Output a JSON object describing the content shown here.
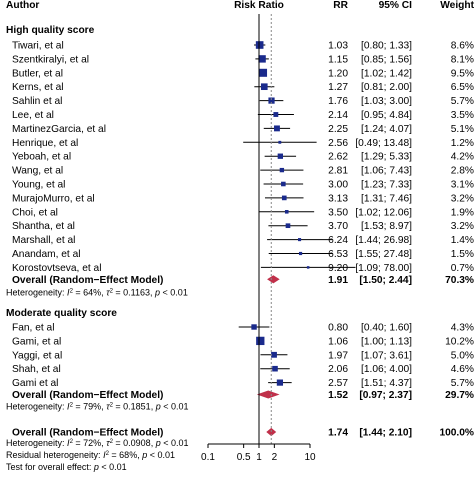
{
  "chart_data": {
    "type": "forest",
    "headers": {
      "author": "Author",
      "risk_ratio": "Risk Ratio",
      "rr": "RR",
      "ci": "95% CI",
      "weight": "Weight"
    },
    "x_scale": "log",
    "xlim": [
      0.1,
      10
    ],
    "x_ticks": [
      0.1,
      0.5,
      1,
      2,
      10
    ],
    "x_tick_labels": [
      "0.1",
      "0.5",
      "1",
      "2",
      "10"
    ],
    "null_line": 1,
    "summary_line": 1.74,
    "groups": [
      {
        "title": "High quality score",
        "studies": [
          {
            "author": "Tiwari, et al",
            "rr": 1.03,
            "lo": 0.8,
            "hi": 1.33,
            "rr_text": "1.03",
            "ci_text": "[0.80;  1.33]",
            "weight": "8.6%"
          },
          {
            "author": "Szentkiralyi, et al",
            "rr": 1.15,
            "lo": 0.85,
            "hi": 1.56,
            "rr_text": "1.15",
            "ci_text": "[0.85;  1.56]",
            "weight": "8.1%"
          },
          {
            "author": "Butler, et al",
            "rr": 1.2,
            "lo": 1.02,
            "hi": 1.42,
            "rr_text": "1.20",
            "ci_text": "[1.02;  1.42]",
            "weight": "9.5%"
          },
          {
            "author": "Kerns, et al",
            "rr": 1.27,
            "lo": 0.81,
            "hi": 2.0,
            "rr_text": "1.27",
            "ci_text": "[0.81;  2.00]",
            "weight": "6.5%"
          },
          {
            "author": "Sahlin et al",
            "rr": 1.76,
            "lo": 1.03,
            "hi": 3.0,
            "rr_text": "1.76",
            "ci_text": "[1.03;  3.00]",
            "weight": "5.7%"
          },
          {
            "author": "Lee, et al",
            "rr": 2.14,
            "lo": 0.95,
            "hi": 4.84,
            "rr_text": "2.14",
            "ci_text": "[0.95;  4.84]",
            "weight": "3.5%"
          },
          {
            "author": "MartinezGarcia, et al",
            "rr": 2.25,
            "lo": 1.24,
            "hi": 4.07,
            "rr_text": "2.25",
            "ci_text": "[1.24;  4.07]",
            "weight": "5.1%"
          },
          {
            "author": "Henrique, et al",
            "rr": 2.56,
            "lo": 0.49,
            "hi": 13.48,
            "rr_text": "2.56",
            "ci_text": "[0.49; 13.48]",
            "weight": "1.2%"
          },
          {
            "author": "Yeboah, et al",
            "rr": 2.62,
            "lo": 1.29,
            "hi": 5.33,
            "rr_text": "2.62",
            "ci_text": "[1.29;  5.33]",
            "weight": "4.2%"
          },
          {
            "author": "Wang, et al",
            "rr": 2.81,
            "lo": 1.06,
            "hi": 7.43,
            "rr_text": "2.81",
            "ci_text": "[1.06;  7.43]",
            "weight": "2.8%"
          },
          {
            "author": "Young, et al",
            "rr": 3.0,
            "lo": 1.23,
            "hi": 7.33,
            "rr_text": "3.00",
            "ci_text": "[1.23;  7.33]",
            "weight": "3.1%"
          },
          {
            "author": "MurajoMurro, et al",
            "rr": 3.13,
            "lo": 1.31,
            "hi": 7.46,
            "rr_text": "3.13",
            "ci_text": "[1.31;  7.46]",
            "weight": "3.2%"
          },
          {
            "author": "Choi, et al",
            "rr": 3.5,
            "lo": 1.02,
            "hi": 12.06,
            "rr_text": "3.50",
            "ci_text": "[1.02; 12.06]",
            "weight": "1.9%"
          },
          {
            "author": "Shantha, et al",
            "rr": 3.7,
            "lo": 1.53,
            "hi": 8.97,
            "rr_text": "3.70",
            "ci_text": "[1.53;  8.97]",
            "weight": "3.2%"
          },
          {
            "author": "Marshall, et al",
            "rr": 6.24,
            "lo": 1.44,
            "hi": 26.98,
            "rr_text": "6.24",
            "ci_text": "[1.44; 26.98]",
            "weight": "1.4%"
          },
          {
            "author": "Anandam, et al",
            "rr": 6.53,
            "lo": 1.55,
            "hi": 27.48,
            "rr_text": "6.53",
            "ci_text": "[1.55; 27.48]",
            "weight": "1.5%"
          },
          {
            "author": "Korostovtseva, et al",
            "rr": 9.2,
            "lo": 1.09,
            "hi": 78.0,
            "rr_text": "9.20",
            "ci_text": "[1.09; 78.00]",
            "weight": "0.7%"
          }
        ],
        "overall": {
          "label": "Overall (Random−Effect Model)",
          "rr": 1.91,
          "lo": 1.5,
          "hi": 2.44,
          "rr_text": "1.91",
          "ci_text": "[1.50;  2.44]",
          "weight": "70.3%"
        },
        "heterogeneity": {
          "prefix": "Heterogeneity: ",
          "i2": "I",
          "i2_sup": "2",
          "i2_val": " = 64%, ",
          "tau": "τ",
          "tau_sup": "2",
          "tau_val": " = 0.1163, ",
          "p": "p",
          "p_val": " < 0.01"
        }
      },
      {
        "title": "Moderate quality score",
        "studies": [
          {
            "author": "Fan, et al",
            "rr": 0.8,
            "lo": 0.4,
            "hi": 1.6,
            "rr_text": "0.80",
            "ci_text": "[0.40;  1.60]",
            "weight": "4.3%"
          },
          {
            "author": "Gami, et al",
            "rr": 1.06,
            "lo": 1.0,
            "hi": 1.13,
            "rr_text": "1.06",
            "ci_text": "[1.00;  1.13]",
            "weight": "10.2%"
          },
          {
            "author": "Yaggi, et al",
            "rr": 1.97,
            "lo": 1.07,
            "hi": 3.61,
            "rr_text": "1.97",
            "ci_text": "[1.07;  3.61]",
            "weight": "5.0%"
          },
          {
            "author": "Shah, et al",
            "rr": 2.06,
            "lo": 1.06,
            "hi": 4.0,
            "rr_text": "2.06",
            "ci_text": "[1.06;  4.00]",
            "weight": "4.6%"
          },
          {
            "author": "Gami et al",
            "rr": 2.57,
            "lo": 1.51,
            "hi": 4.37,
            "rr_text": "2.57",
            "ci_text": "[1.51;  4.37]",
            "weight": "5.7%"
          }
        ],
        "overall": {
          "label": "Overall (Random−Effect Model)",
          "rr": 1.52,
          "lo": 0.97,
          "hi": 2.37,
          "rr_text": "1.52",
          "ci_text": "[0.97;  2.37]",
          "weight": "29.7%"
        },
        "heterogeneity": {
          "prefix": "Heterogeneity: ",
          "i2": "I",
          "i2_sup": "2",
          "i2_val": " = 79%, ",
          "tau": "τ",
          "tau_sup": "2",
          "tau_val": " = 0.1851, ",
          "p": "p",
          "p_val": " < 0.01"
        }
      }
    ],
    "overall": {
      "label": "Overall (Random−Effect Model)",
      "rr": 1.74,
      "lo": 1.44,
      "hi": 2.1,
      "rr_text": "1.74",
      "ci_text": "[1.44;  2.10]",
      "weight": "100.0%"
    },
    "footer": {
      "heterogeneity": {
        "prefix": "Heterogeneity: ",
        "i2": "I",
        "i2_sup": "2",
        "i2_val": " = 72%, ",
        "tau": "τ",
        "tau_sup": "2",
        "tau_val": " = 0.0908, ",
        "p": "p",
        "p_val": " < 0.01"
      },
      "residual": {
        "prefix": "Residual heterogeneity: ",
        "i2": "I",
        "i2_sup": "2",
        "i2_val": " = 68%, ",
        "p": "p",
        "p_val": " < 0.01"
      },
      "test": {
        "prefix": "Test for overall effect:  ",
        "p": "p",
        "p_val": " < 0.01"
      }
    },
    "colors": {
      "study": "#1a2a8c",
      "summary": "#c0304a",
      "axis": "#000000",
      "ci_line": "#000000"
    }
  }
}
